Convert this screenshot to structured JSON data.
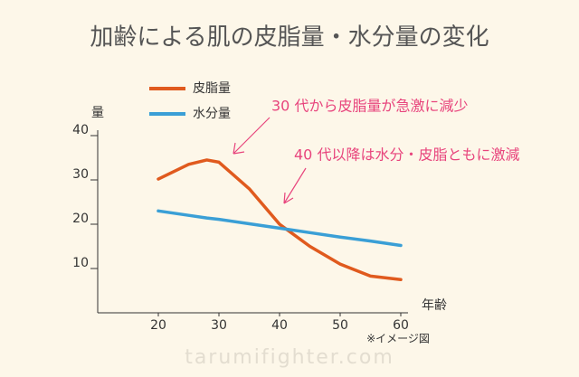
{
  "chart_data": {
    "type": "line",
    "title": "加齢による肌の皮脂量・水分量の変化",
    "y_label": "量",
    "x_label": "年齢",
    "x": [
      20,
      25,
      28,
      30,
      35,
      40,
      45,
      50,
      55,
      60
    ],
    "series": [
      {
        "name": "皮脂量",
        "color": "#e05a1e",
        "values": [
          30.2,
          33.5,
          34.5,
          34,
          28,
          20,
          15,
          11,
          8.3,
          7.5
        ]
      },
      {
        "name": "水分量",
        "color": "#3a9fd6",
        "values": [
          23,
          22,
          21.4,
          21.1,
          20.1,
          19.1,
          18.1,
          17.1,
          16.2,
          15.2
        ]
      }
    ],
    "xlim": [
      10,
      60
    ],
    "xticks": [
      20,
      30,
      40,
      50,
      60
    ],
    "ylim": [
      0,
      40
    ],
    "yticks": [
      10,
      20,
      30,
      40
    ],
    "annotations": [
      "30 代から皮脂量が急激に減少",
      "40 代以降は水分・皮脂ともに激減"
    ],
    "note": "※イメージ図",
    "watermark": "tarumifighter.com"
  }
}
